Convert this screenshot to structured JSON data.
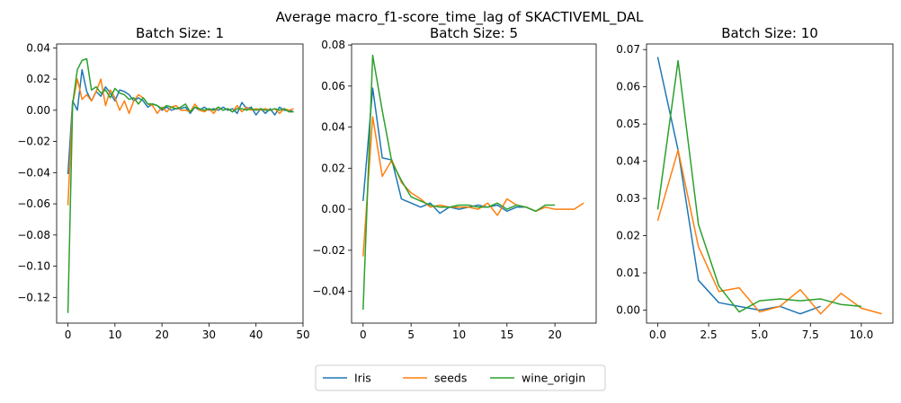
{
  "suptitle": "Average macro_f1-score_time_lag of SKACTIVEML_DAL",
  "colors": {
    "Iris": "#1f77b4",
    "seeds": "#ff7f0e",
    "wine_origin": "#2ca02c"
  },
  "legend": [
    "Iris",
    "seeds",
    "wine_origin"
  ],
  "chart_data": [
    {
      "type": "line",
      "title": "Batch Size: 1",
      "xlim": [
        -2.4,
        50
      ],
      "ylim": [
        -0.1365,
        0.0425
      ],
      "xticks": [
        0,
        10,
        20,
        30,
        40,
        50
      ],
      "yticks": [
        -0.12,
        -0.1,
        -0.08,
        -0.06,
        -0.04,
        -0.02,
        0.0,
        0.02,
        0.04
      ],
      "ytick_labels": [
        "−0.12",
        "−0.10",
        "−0.08",
        "−0.06",
        "−0.04",
        "−0.02",
        "0.00",
        "0.02",
        "0.04"
      ],
      "series": [
        {
          "name": "Iris",
          "values": [
            -0.041,
            0.006,
            0.0,
            0.026,
            0.012,
            0.006,
            0.012,
            0.009,
            0.015,
            0.011,
            0.006,
            0.013,
            0.012,
            0.01,
            0.006,
            0.008,
            0.006,
            0.002,
            0.004,
            0.003,
            0.0,
            0.002,
            0.0,
            0.001,
            0.001,
            0.002,
            -0.002,
            0.002,
            0.0,
            0.002,
            0.0,
            0.001,
            0.0,
            0.002,
            0.0,
            0.001,
            -0.002,
            0.005,
            0.001,
            0.002,
            -0.003,
            0.001,
            -0.002,
            0.001,
            -0.003,
            0.002,
            0.0,
            0.0,
            -0.001
          ]
        },
        {
          "name": "seeds",
          "values": [
            -0.061,
            0.004,
            0.02,
            0.007,
            0.01,
            0.006,
            0.012,
            0.02,
            0.003,
            0.013,
            0.008,
            0.0,
            0.006,
            -0.002,
            0.006,
            0.01,
            0.008,
            0.004,
            0.003,
            -0.002,
            0.002,
            -0.001,
            0.002,
            0.003,
            0.0,
            0.0,
            -0.001,
            0.004,
            0.0,
            -0.001,
            0.001,
            -0.002,
            0.002,
            0.0,
            0.001,
            -0.001,
            0.003,
            -0.001,
            0.002,
            0.0,
            0.001,
            0.0,
            0.001,
            0.0,
            0.001,
            -0.002,
            0.001,
            0.0,
            0.001
          ]
        },
        {
          "name": "wine_origin",
          "values": [
            -0.13,
            0.004,
            0.026,
            0.032,
            0.033,
            0.013,
            0.015,
            0.011,
            0.013,
            0.008,
            0.014,
            0.011,
            0.01,
            0.007,
            0.008,
            0.004,
            0.008,
            0.004,
            0.004,
            0.003,
            0.001,
            0.003,
            0.002,
            0.001,
            0.002,
            0.004,
            -0.001,
            0.002,
            0.001,
            0.0,
            0.001,
            0.0,
            0.002,
            0.0,
            0.001,
            -0.001,
            0.001,
            0.001,
            0.0,
            0.001,
            0.0,
            0.001,
            0.0,
            0.0,
            0.001,
            0.0,
            0.001,
            -0.001,
            -0.001
          ]
        }
      ]
    },
    {
      "type": "line",
      "title": "Batch Size: 5",
      "xlim": [
        -1.2,
        24.3
      ],
      "ylim": [
        -0.0555,
        0.0805
      ],
      "xticks": [
        0,
        5,
        10,
        15,
        20
      ],
      "yticks": [
        -0.04,
        -0.02,
        0.0,
        0.02,
        0.04,
        0.06,
        0.08
      ],
      "ytick_labels": [
        "−0.04",
        "−0.02",
        "0.00",
        "0.02",
        "0.04",
        "0.06",
        "0.08"
      ],
      "series": [
        {
          "name": "Iris",
          "values": [
            0.004,
            0.059,
            0.025,
            0.024,
            0.005,
            0.003,
            0.001,
            0.003,
            -0.002,
            0.001,
            0.0,
            0.001,
            0.002,
            0.001,
            0.002,
            -0.001,
            0.001,
            0.001,
            -0.001
          ]
        },
        {
          "name": "seeds",
          "values": [
            -0.023,
            0.045,
            0.016,
            0.024,
            0.013,
            0.008,
            0.005,
            0.001,
            0.002,
            0.001,
            0.001,
            0.001,
            0.0,
            0.003,
            -0.003,
            0.005,
            0.002,
            0.001,
            -0.001,
            0.001,
            0.0,
            0.0,
            0.0,
            0.003
          ]
        },
        {
          "name": "wine_origin",
          "values": [
            -0.049,
            0.075,
            0.048,
            0.023,
            0.014,
            0.006,
            0.004,
            0.002,
            0.001,
            0.001,
            0.002,
            0.002,
            0.001,
            0.001,
            0.003,
            0.0,
            0.002,
            0.001,
            -0.001,
            0.002,
            0.002
          ]
        }
      ]
    },
    {
      "type": "line",
      "title": "Batch Size: 10",
      "xlim": [
        -0.55,
        11.55
      ],
      "ylim": [
        -0.0035,
        0.0715
      ],
      "xticks": [
        0.0,
        2.5,
        5.0,
        7.5,
        10.0
      ],
      "yticks": [
        0.0,
        0.01,
        0.02,
        0.03,
        0.04,
        0.05,
        0.06,
        0.07
      ],
      "ytick_labels": [
        "0.00",
        "0.01",
        "0.02",
        "0.03",
        "0.04",
        "0.05",
        "0.06",
        "0.07"
      ],
      "series": [
        {
          "name": "Iris",
          "values": [
            0.068,
            0.043,
            0.008,
            0.002,
            0.001,
            0.0,
            0.001,
            -0.001,
            0.001
          ]
        },
        {
          "name": "seeds",
          "values": [
            0.024,
            0.043,
            0.017,
            0.005,
            0.006,
            -0.0005,
            0.001,
            0.0055,
            -0.001,
            0.0045,
            0.0005,
            -0.001
          ]
        },
        {
          "name": "wine_origin",
          "values": [
            0.027,
            0.067,
            0.023,
            0.0065,
            -0.0005,
            0.0025,
            0.003,
            0.0025,
            0.003,
            0.0015,
            0.001
          ]
        }
      ]
    }
  ]
}
